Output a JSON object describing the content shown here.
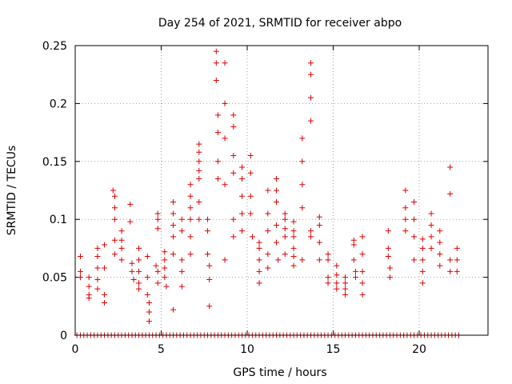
{
  "chart_data": {
    "type": "scatter",
    "title": "Day 254 of 2021, SRMTID for receiver abpo",
    "xlabel": "GPS time / hours",
    "ylabel": "SRMTID / TECUs",
    "xlim": [
      0,
      24
    ],
    "ylim": [
      0,
      0.25
    ],
    "x_ticks": [
      0,
      5,
      10,
      15,
      20
    ],
    "x_tick_labels": [
      "0",
      "5",
      "10",
      "15",
      "20"
    ],
    "y_ticks": [
      0,
      0.05,
      0.1,
      0.15,
      0.2,
      0.25
    ],
    "y_tick_labels": [
      "0",
      "0.05",
      "0.1",
      "0.15",
      "0.2",
      "0.25"
    ],
    "grid": true,
    "marker": "+",
    "series": [
      {
        "name": "SRMTID",
        "color": "#e00000",
        "x": [
          0.3,
          0.3,
          0.3,
          0.8,
          0.8,
          0.8,
          0.8,
          1.3,
          1.3,
          1.3,
          1.3,
          1.3,
          1.7,
          1.7,
          1.7,
          1.7,
          2.2,
          2.3,
          2.3,
          2.3,
          2.3,
          2.3,
          2.7,
          2.7,
          2.7,
          2.7,
          3.2,
          3.2,
          3.3,
          3.3,
          3.4,
          3.7,
          3.7,
          3.7,
          3.7,
          3.7,
          4.2,
          4.2,
          4.2,
          4.3,
          4.3,
          4.3,
          4.7,
          4.8,
          4.8,
          4.8,
          4.8,
          4.8,
          5.2,
          5.2,
          5.2,
          5.2,
          5.3,
          5.7,
          5.7,
          5.7,
          5.7,
          5.7,
          5.7,
          6.2,
          6.2,
          6.2,
          6.2,
          6.2,
          6.7,
          6.7,
          6.7,
          6.7,
          6.7,
          6.7,
          7.2,
          7.2,
          7.2,
          7.2,
          7.2,
          7.2,
          7.2,
          7.7,
          7.7,
          7.7,
          7.8,
          7.8,
          7.8,
          8.2,
          8.2,
          8.2,
          8.3,
          8.3,
          8.3,
          8.3,
          8.7,
          8.7,
          8.7,
          8.7,
          8.7,
          9.2,
          9.2,
          9.2,
          9.2,
          9.2,
          9.2,
          9.7,
          9.7,
          9.7,
          9.7,
          9.7,
          10.2,
          10.2,
          10.2,
          10.2,
          10.3,
          10.7,
          10.7,
          10.7,
          10.7,
          10.7,
          11.2,
          11.2,
          11.2,
          11.2,
          11.2,
          11.7,
          11.7,
          11.7,
          11.7,
          11.7,
          11.8,
          12.2,
          12.2,
          12.2,
          12.2,
          12.2,
          12.7,
          12.7,
          12.7,
          12.7,
          12.7,
          12.7,
          13.2,
          13.2,
          13.2,
          13.2,
          13.2,
          13.7,
          13.7,
          13.7,
          13.7,
          13.7,
          13.7,
          14.2,
          14.2,
          14.2,
          14.2,
          14.7,
          14.7,
          14.7,
          14.7,
          15.2,
          15.2,
          15.2,
          15.2,
          15.7,
          15.7,
          15.7,
          15.7,
          16.2,
          16.2,
          16.2,
          16.3,
          16.3,
          16.7,
          16.7,
          16.7,
          16.7,
          16.7,
          18.2,
          18.2,
          18.2,
          18.3,
          18.3,
          19.2,
          19.2,
          19.2,
          19.2,
          19.7,
          19.7,
          19.7,
          19.7,
          20.2,
          20.2,
          20.2,
          20.2,
          20.2,
          20.7,
          20.7,
          20.7,
          20.7,
          21.2,
          21.2,
          21.2,
          21.2,
          21.8,
          21.8,
          21.8,
          21.8,
          22.2,
          22.2,
          22.2
        ],
        "y": [
          0.068,
          0.055,
          0.05,
          0.042,
          0.035,
          0.032,
          0.05,
          0.075,
          0.068,
          0.058,
          0.048,
          0.04,
          0.078,
          0.058,
          0.035,
          0.028,
          0.125,
          0.12,
          0.11,
          0.1,
          0.082,
          0.07,
          0.09,
          0.082,
          0.075,
          0.065,
          0.113,
          0.098,
          0.062,
          0.055,
          0.048,
          0.075,
          0.065,
          0.055,
          0.045,
          0.04,
          0.068,
          0.05,
          0.035,
          0.028,
          0.02,
          0.012,
          0.06,
          0.105,
          0.1,
          0.092,
          0.055,
          0.045,
          0.072,
          0.065,
          0.058,
          0.05,
          0.042,
          0.115,
          0.105,
          0.095,
          0.085,
          0.07,
          0.022,
          0.1,
          0.09,
          0.065,
          0.055,
          0.042,
          0.13,
          0.12,
          0.11,
          0.1,
          0.085,
          0.07,
          0.165,
          0.158,
          0.15,
          0.142,
          0.135,
          0.115,
          0.1,
          0.1,
          0.09,
          0.07,
          0.06,
          0.048,
          0.025,
          0.245,
          0.235,
          0.22,
          0.19,
          0.175,
          0.15,
          0.135,
          0.235,
          0.2,
          0.17,
          0.13,
          0.065,
          0.19,
          0.18,
          0.155,
          0.14,
          0.1,
          0.085,
          0.145,
          0.135,
          0.12,
          0.105,
          0.09,
          0.155,
          0.14,
          0.12,
          0.105,
          0.085,
          0.08,
          0.075,
          0.065,
          0.055,
          0.045,
          0.125,
          0.105,
          0.09,
          0.07,
          0.058,
          0.135,
          0.125,
          0.115,
          0.095,
          0.08,
          0.065,
          0.105,
          0.1,
          0.092,
          0.085,
          0.07,
          0.098,
          0.09,
          0.085,
          0.075,
          0.068,
          0.06,
          0.17,
          0.15,
          0.13,
          0.11,
          0.065,
          0.235,
          0.225,
          0.205,
          0.185,
          0.09,
          0.085,
          0.102,
          0.095,
          0.08,
          0.065,
          0.07,
          0.065,
          0.05,
          0.045,
          0.06,
          0.052,
          0.045,
          0.04,
          0.05,
          0.045,
          0.04,
          0.035,
          0.082,
          0.078,
          0.065,
          0.055,
          0.05,
          0.085,
          0.07,
          0.055,
          0.045,
          0.035,
          0.09,
          0.075,
          0.068,
          0.058,
          0.05,
          0.125,
          0.11,
          0.1,
          0.09,
          0.115,
          0.1,
          0.085,
          0.065,
          0.083,
          0.075,
          0.065,
          0.055,
          0.045,
          0.105,
          0.095,
          0.085,
          0.075,
          0.09,
          0.08,
          0.07,
          0.06,
          0.145,
          0.122,
          0.065,
          0.055,
          0.075,
          0.065,
          0.055
        ]
      },
      {
        "name": "SRMTID zero baseline",
        "color": "#e00000",
        "x": [
          0.1,
          0.3,
          0.5,
          0.7,
          0.9,
          1.1,
          1.3,
          1.5,
          1.7,
          1.9,
          2.1,
          2.3,
          2.5,
          2.7,
          2.9,
          3.1,
          3.3,
          3.5,
          3.7,
          3.9,
          4.1,
          4.3,
          4.5,
          4.7,
          4.9,
          5.1,
          5.3,
          5.5,
          5.7,
          5.9,
          6.1,
          6.3,
          6.5,
          6.7,
          6.9,
          7.1,
          7.3,
          7.5,
          7.7,
          7.9,
          8.1,
          8.3,
          8.5,
          8.7,
          8.9,
          9.1,
          9.3,
          9.5,
          9.7,
          9.9,
          10.1,
          10.3,
          10.5,
          10.7,
          10.9,
          11.1,
          11.3,
          11.5,
          11.7,
          11.9,
          12.1,
          12.3,
          12.5,
          12.7,
          12.9,
          13.1,
          13.3,
          13.5,
          13.7,
          13.9,
          14.1,
          14.3,
          14.5,
          14.7,
          14.9,
          15.1,
          15.3,
          15.5,
          15.7,
          15.9,
          16.1,
          16.3,
          16.5,
          16.7,
          16.9,
          17.1,
          17.3,
          17.5,
          17.7,
          17.9,
          18.1,
          18.3,
          18.5,
          18.7,
          18.9,
          19.1,
          19.3,
          19.5,
          19.7,
          19.9,
          20.1,
          20.3,
          20.5,
          20.7,
          20.9,
          21.1,
          21.3,
          21.5,
          21.7,
          21.9,
          22.1,
          22.3
        ],
        "y": [
          0,
          0,
          0,
          0,
          0,
          0,
          0,
          0,
          0,
          0,
          0,
          0,
          0,
          0,
          0,
          0,
          0,
          0,
          0,
          0,
          0,
          0,
          0,
          0,
          0,
          0,
          0,
          0,
          0,
          0,
          0,
          0,
          0,
          0,
          0,
          0,
          0,
          0,
          0,
          0,
          0,
          0,
          0,
          0,
          0,
          0,
          0,
          0,
          0,
          0,
          0,
          0,
          0,
          0,
          0,
          0,
          0,
          0,
          0,
          0,
          0,
          0,
          0,
          0,
          0,
          0,
          0,
          0,
          0,
          0,
          0,
          0,
          0,
          0,
          0,
          0,
          0,
          0,
          0,
          0,
          0,
          0,
          0,
          0,
          0,
          0,
          0,
          0,
          0,
          0,
          0,
          0,
          0,
          0,
          0,
          0,
          0,
          0,
          0,
          0,
          0,
          0,
          0,
          0,
          0,
          0,
          0,
          0,
          0,
          0,
          0,
          0
        ]
      }
    ]
  }
}
